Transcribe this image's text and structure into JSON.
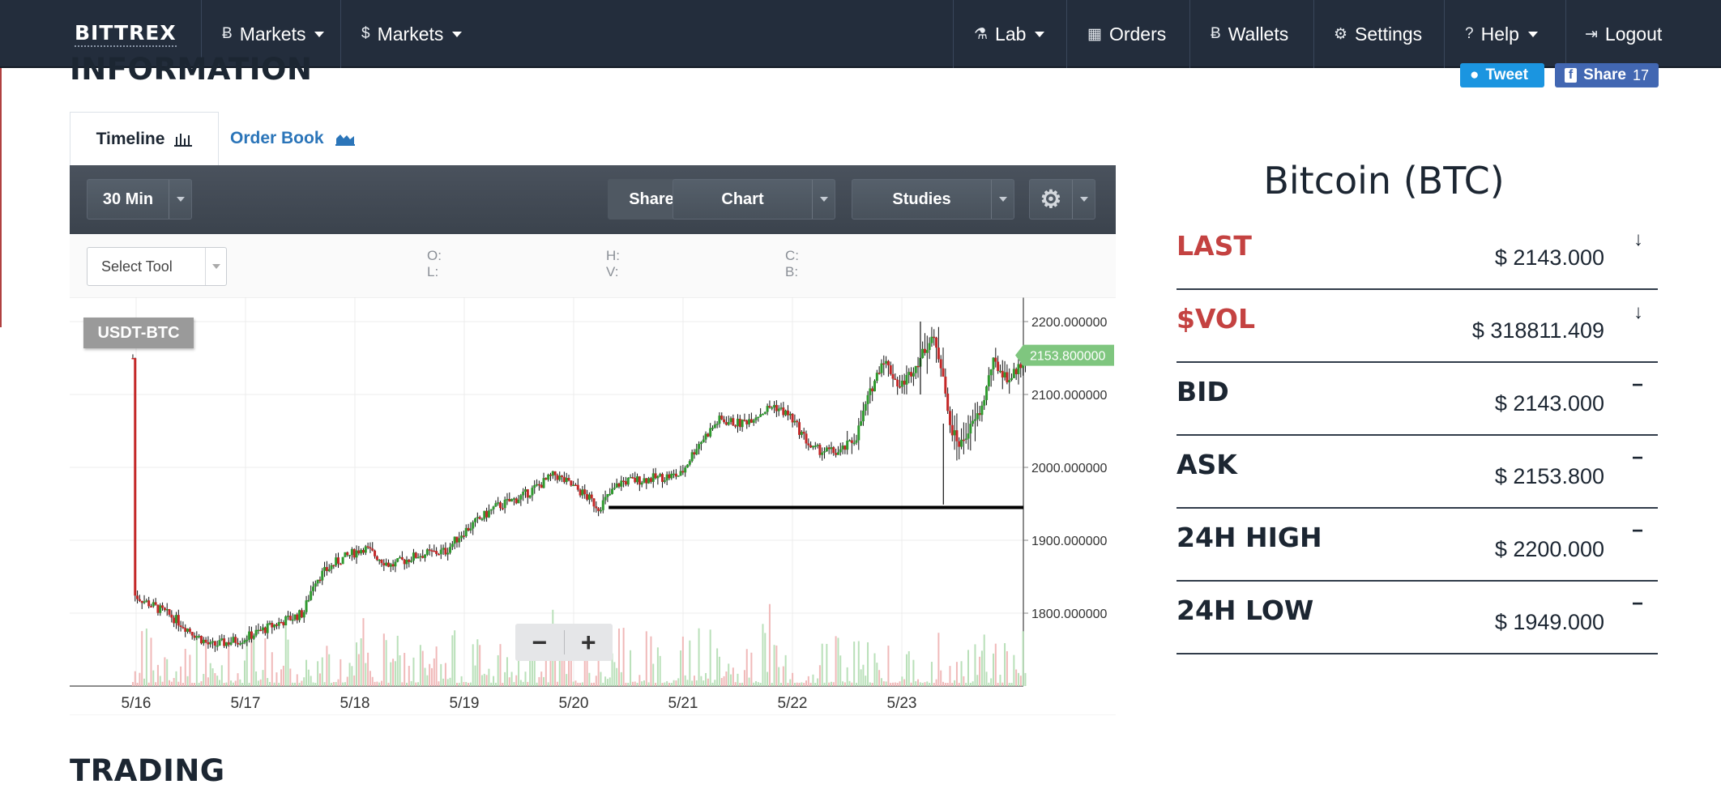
{
  "nav": {
    "brand": "BITTREX",
    "items": [
      {
        "label": "Markets",
        "icon": "bitcoin-icon",
        "glyph": "Ƀ",
        "caret": true
      },
      {
        "label": "Markets",
        "icon": "dollar-icon",
        "glyph": "$",
        "caret": true
      },
      {
        "label": "Lab",
        "icon": "flask-icon",
        "glyph": "⚗",
        "caret": true
      },
      {
        "label": "Orders",
        "icon": "calendar-icon",
        "glyph": "▦",
        "caret": false
      },
      {
        "label": "Wallets",
        "icon": "bitcoin-icon",
        "glyph": "Ƀ",
        "caret": false
      },
      {
        "label": "Settings",
        "icon": "gear-icon",
        "glyph": "⚙",
        "caret": false
      },
      {
        "label": "Help",
        "icon": "question-icon",
        "glyph": "?",
        "caret": true
      },
      {
        "label": "Logout",
        "icon": "logout-icon",
        "glyph": "⇥",
        "caret": false
      }
    ]
  },
  "info": {
    "title": "INFORMATION",
    "tweet_label": "Tweet",
    "share_label": "Share",
    "share_count": "17"
  },
  "tabs": {
    "timeline": "Timeline",
    "order_book": "Order Book"
  },
  "chart_toolbar": {
    "interval": "30 Min",
    "share": "Share",
    "chart": "Chart",
    "studies": "Studies",
    "select_tool": "Select Tool",
    "o": "O:",
    "l": "L:",
    "h": "H:",
    "v": "V:",
    "c": "C:",
    "b": "B:"
  },
  "chart_data": {
    "type": "candlestick",
    "pair": "USDT-BTC",
    "x_ticks": [
      "5/16",
      "5/17",
      "5/18",
      "5/19",
      "5/20",
      "5/21",
      "5/22",
      "5/23"
    ],
    "y_ticks": [
      "2200.000000",
      "2100.000000",
      "2000.000000",
      "1900.000000",
      "1800.000000"
    ],
    "ylim": [
      1700,
      2220
    ],
    "current_price": "2153.800000",
    "support_level": 1945,
    "grid": true,
    "price_path": [
      [
        0.0,
        1825
      ],
      [
        0.35,
        1795
      ],
      [
        0.7,
        1755
      ],
      [
        1.0,
        1765
      ],
      [
        1.3,
        1785
      ],
      [
        1.55,
        1800
      ],
      [
        1.65,
        1845
      ],
      [
        1.85,
        1870
      ],
      [
        2.1,
        1890
      ],
      [
        2.35,
        1865
      ],
      [
        2.6,
        1880
      ],
      [
        2.85,
        1885
      ],
      [
        3.0,
        1910
      ],
      [
        3.3,
        1945
      ],
      [
        3.55,
        1960
      ],
      [
        3.85,
        1990
      ],
      [
        4.1,
        1965
      ],
      [
        4.25,
        1945
      ],
      [
        4.45,
        1980
      ],
      [
        4.75,
        1985
      ],
      [
        5.0,
        1990
      ],
      [
        5.15,
        2030
      ],
      [
        5.35,
        2065
      ],
      [
        5.55,
        2060
      ],
      [
        5.85,
        2085
      ],
      [
        6.0,
        2070
      ],
      [
        6.2,
        2025
      ],
      [
        6.45,
        2020
      ],
      [
        6.6,
        2040
      ],
      [
        6.7,
        2090
      ],
      [
        6.85,
        2150
      ],
      [
        7.0,
        2110
      ],
      [
        7.15,
        2140
      ],
      [
        7.3,
        2180
      ],
      [
        7.4,
        2130
      ],
      [
        7.45,
        2060
      ],
      [
        7.55,
        2030
      ],
      [
        7.75,
        2080
      ],
      [
        7.85,
        2145
      ],
      [
        8.0,
        2120
      ],
      [
        8.15,
        2150
      ]
    ]
  },
  "zoom": {
    "out": "−",
    "in": "+"
  },
  "coin_title": "Bitcoin (BTC)",
  "stats": [
    {
      "label": "LAST",
      "value": "$ 2143.000",
      "indicator": "↓",
      "highlight": true
    },
    {
      "label": "$VOL",
      "value": "$ 318811.409",
      "indicator": "↓",
      "highlight": true
    },
    {
      "label": "BID",
      "value": "$ 2143.000",
      "indicator": "−",
      "highlight": false
    },
    {
      "label": "ASK",
      "value": "$ 2153.800",
      "indicator": "−",
      "highlight": false
    },
    {
      "label": "24H HIGH",
      "value": "$ 2200.000",
      "indicator": "−",
      "highlight": false
    },
    {
      "label": "24H LOW",
      "value": "$ 1949.000",
      "indicator": "−",
      "highlight": false
    }
  ],
  "trading_title": "TRADING",
  "colors": {
    "up": "#2f9a2f",
    "down": "#c42828",
    "brand_bar": "#232d3c",
    "accent_red": "#c44241",
    "link_blue": "#2b75b9"
  }
}
